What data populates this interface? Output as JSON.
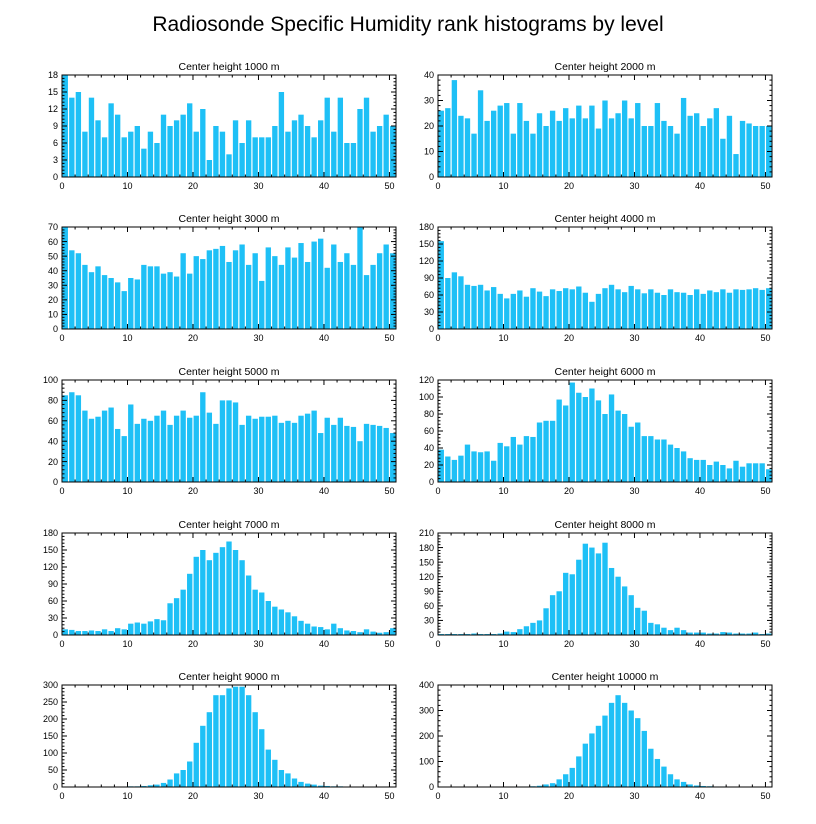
{
  "title": "Radiosonde Specific Humidity rank histograms by level",
  "colors": {
    "bar": "#1ec0f6",
    "axis": "#000000",
    "background": "#ffffff"
  },
  "chart_data": [
    {
      "type": "bar",
      "title": "Center height 1000 m",
      "x_start": 0,
      "xlim": [
        0,
        51
      ],
      "xticks": [
        0,
        10,
        20,
        30,
        40,
        50
      ],
      "ylim": [
        0,
        18
      ],
      "yticks": [
        0,
        3,
        6,
        9,
        12,
        15,
        18
      ],
      "values": [
        18,
        14,
        15,
        8,
        14,
        10,
        7,
        13,
        11,
        7,
        8,
        9,
        5,
        8,
        6,
        11,
        9,
        10,
        11,
        13,
        8,
        12,
        3,
        9,
        8,
        4,
        10,
        6,
        10,
        7,
        7,
        7,
        9,
        15,
        8,
        10,
        11,
        9,
        7,
        10,
        14,
        8,
        14,
        6,
        6,
        12,
        14,
        8,
        9,
        11,
        9,
        13
      ]
    },
    {
      "type": "bar",
      "title": "Center height 2000 m",
      "x_start": 0,
      "xlim": [
        0,
        51
      ],
      "xticks": [
        0,
        10,
        20,
        30,
        40,
        50
      ],
      "ylim": [
        0,
        40
      ],
      "yticks": [
        0,
        10,
        20,
        30,
        40
      ],
      "values": [
        26,
        27,
        38,
        24,
        23,
        17,
        34,
        22,
        26,
        28,
        29,
        17,
        29,
        22,
        17,
        25,
        20,
        26,
        22,
        27,
        23,
        28,
        23,
        28,
        19,
        30,
        23,
        25,
        30,
        23,
        29,
        20,
        20,
        29,
        22,
        20,
        17,
        31,
        24,
        25,
        20,
        23,
        27,
        15,
        24,
        9,
        22,
        21,
        20,
        20,
        20,
        20
      ]
    },
    {
      "type": "bar",
      "title": "Center height 3000 m",
      "x_start": 0,
      "xlim": [
        0,
        51
      ],
      "xticks": [
        0,
        10,
        20,
        30,
        40,
        50
      ],
      "ylim": [
        0,
        70
      ],
      "yticks": [
        0,
        10,
        20,
        30,
        40,
        50,
        60,
        70
      ],
      "values": [
        70,
        54,
        52,
        44,
        39,
        43,
        37,
        35,
        32,
        26,
        35,
        34,
        44,
        43,
        43,
        38,
        39,
        36,
        52,
        38,
        50,
        48,
        54,
        55,
        57,
        46,
        54,
        58,
        44,
        52,
        33,
        56,
        50,
        44,
        56,
        49,
        59,
        46,
        60,
        62,
        42,
        58,
        46,
        52,
        44,
        70,
        37,
        44,
        52,
        58,
        52,
        58
      ]
    },
    {
      "type": "bar",
      "title": "Center height 4000 m",
      "x_start": 0,
      "xlim": [
        0,
        51
      ],
      "xticks": [
        0,
        10,
        20,
        30,
        40,
        50
      ],
      "ylim": [
        0,
        180
      ],
      "yticks": [
        0,
        30,
        60,
        90,
        120,
        150,
        180
      ],
      "values": [
        155,
        90,
        100,
        93,
        78,
        76,
        78,
        68,
        74,
        62,
        54,
        62,
        68,
        57,
        72,
        66,
        58,
        70,
        67,
        72,
        70,
        75,
        64,
        48,
        62,
        72,
        78,
        70,
        65,
        76,
        70,
        63,
        70,
        64,
        60,
        70,
        65,
        64,
        60,
        70,
        62,
        68,
        65,
        70,
        64,
        70,
        69,
        70,
        72,
        69,
        72,
        75
      ]
    },
    {
      "type": "bar",
      "title": "Center height 5000 m",
      "x_start": 0,
      "xlim": [
        0,
        51
      ],
      "xticks": [
        0,
        10,
        20,
        30,
        40,
        50
      ],
      "ylim": [
        0,
        100
      ],
      "yticks": [
        0,
        20,
        40,
        60,
        80,
        100
      ],
      "values": [
        85,
        88,
        85,
        70,
        62,
        64,
        70,
        73,
        52,
        45,
        76,
        57,
        62,
        60,
        65,
        70,
        56,
        65,
        70,
        63,
        65,
        88,
        68,
        57,
        80,
        80,
        78,
        56,
        65,
        62,
        64,
        64,
        65,
        58,
        60,
        58,
        65,
        67,
        70,
        48,
        63,
        56,
        63,
        55,
        54,
        40,
        57,
        56,
        55,
        53,
        48,
        52
      ]
    },
    {
      "type": "bar",
      "title": "Center height 6000 m",
      "x_start": 0,
      "xlim": [
        0,
        51
      ],
      "xticks": [
        0,
        10,
        20,
        30,
        40,
        50
      ],
      "ylim": [
        0,
        120
      ],
      "yticks": [
        0,
        20,
        40,
        60,
        80,
        100,
        120
      ],
      "values": [
        38,
        30,
        26,
        31,
        44,
        36,
        35,
        36,
        25,
        46,
        42,
        53,
        44,
        54,
        53,
        70,
        72,
        72,
        97,
        90,
        117,
        105,
        100,
        110,
        96,
        80,
        103,
        84,
        80,
        65,
        70,
        54,
        54,
        50,
        50,
        44,
        40,
        36,
        28,
        26,
        26,
        20,
        24,
        20,
        16,
        25,
        18,
        22,
        22,
        22,
        15,
        22
      ]
    },
    {
      "type": "bar",
      "title": "Center height 7000 m",
      "x_start": 0,
      "xlim": [
        0,
        51
      ],
      "xticks": [
        0,
        10,
        20,
        30,
        40,
        50
      ],
      "ylim": [
        0,
        180
      ],
      "yticks": [
        0,
        30,
        60,
        90,
        120,
        150,
        180
      ],
      "values": [
        10,
        9,
        7,
        7,
        8,
        7,
        10,
        7,
        12,
        10,
        20,
        22,
        20,
        24,
        28,
        26,
        56,
        65,
        80,
        108,
        138,
        150,
        132,
        145,
        155,
        165,
        150,
        132,
        105,
        80,
        75,
        60,
        50,
        45,
        40,
        33,
        25,
        20,
        15,
        14,
        10,
        20,
        12,
        8,
        7,
        5,
        10,
        6,
        4,
        5,
        12,
        8
      ]
    },
    {
      "type": "bar",
      "title": "Center height 8000 m",
      "x_start": 0,
      "xlim": [
        0,
        51
      ],
      "xticks": [
        0,
        10,
        20,
        30,
        40,
        50
      ],
      "ylim": [
        0,
        210
      ],
      "yticks": [
        0,
        30,
        60,
        90,
        120,
        150,
        180,
        210
      ],
      "values": [
        2,
        2,
        2,
        2,
        2,
        3,
        2,
        2,
        2,
        3,
        7,
        6,
        12,
        18,
        25,
        30,
        55,
        82,
        90,
        128,
        125,
        155,
        188,
        180,
        168,
        190,
        138,
        120,
        100,
        82,
        56,
        50,
        25,
        22,
        15,
        10,
        15,
        10,
        5,
        5,
        5,
        3,
        3,
        6,
        5,
        3,
        3,
        3,
        5,
        2,
        3,
        2
      ]
    },
    {
      "type": "bar",
      "title": "Center height 9000 m",
      "x_start": 0,
      "xlim": [
        0,
        51
      ],
      "xticks": [
        0,
        10,
        20,
        30,
        40,
        50
      ],
      "ylim": [
        0,
        300
      ],
      "yticks": [
        0,
        50,
        100,
        150,
        200,
        250,
        300
      ],
      "values": [
        1,
        1,
        1,
        1,
        1,
        1,
        1,
        1,
        1,
        1,
        2,
        2,
        3,
        5,
        7,
        12,
        22,
        40,
        50,
        75,
        130,
        180,
        220,
        270,
        270,
        290,
        295,
        295,
        270,
        220,
        170,
        110,
        80,
        50,
        40,
        25,
        15,
        10,
        7,
        4,
        3,
        2,
        2,
        1,
        1,
        1,
        1,
        1,
        1,
        1,
        1,
        1
      ]
    },
    {
      "type": "bar",
      "title": "Center height 10000 m",
      "x_start": 0,
      "xlim": [
        0,
        51
      ],
      "xticks": [
        0,
        10,
        20,
        30,
        40,
        50
      ],
      "ylim": [
        0,
        400
      ],
      "yticks": [
        0,
        100,
        200,
        300,
        400
      ],
      "values": [
        1,
        1,
        1,
        1,
        1,
        1,
        1,
        1,
        1,
        1,
        1,
        1,
        2,
        2,
        3,
        5,
        10,
        15,
        30,
        50,
        75,
        120,
        170,
        210,
        240,
        280,
        330,
        360,
        330,
        300,
        270,
        220,
        150,
        110,
        80,
        50,
        30,
        20,
        10,
        6,
        4,
        3,
        2,
        2,
        1,
        1,
        1,
        1,
        1,
        1,
        1,
        1
      ]
    }
  ]
}
